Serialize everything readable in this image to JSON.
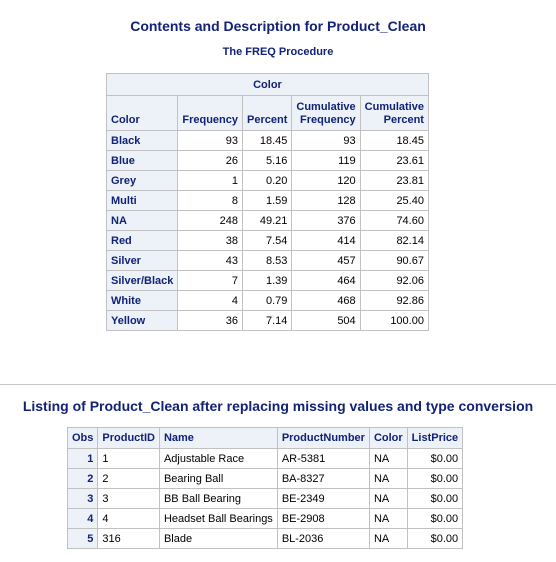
{
  "title": "Contents and Description for Product_Clean",
  "subtitle": "The FREQ Procedure",
  "freq_table": {
    "variable_header": "Color",
    "columns": [
      "Color",
      "Frequency",
      "Percent",
      "Cumulative Frequency",
      "Cumulative Percent"
    ],
    "rows": [
      {
        "color": "Black",
        "frequency": "93",
        "percent": "18.45",
        "cum_freq": "93",
        "cum_pct": "18.45"
      },
      {
        "color": "Blue",
        "frequency": "26",
        "percent": "5.16",
        "cum_freq": "119",
        "cum_pct": "23.61"
      },
      {
        "color": "Grey",
        "frequency": "1",
        "percent": "0.20",
        "cum_freq": "120",
        "cum_pct": "23.81"
      },
      {
        "color": "Multi",
        "frequency": "8",
        "percent": "1.59",
        "cum_freq": "128",
        "cum_pct": "25.40"
      },
      {
        "color": "NA",
        "frequency": "248",
        "percent": "49.21",
        "cum_freq": "376",
        "cum_pct": "74.60"
      },
      {
        "color": "Red",
        "frequency": "38",
        "percent": "7.54",
        "cum_freq": "414",
        "cum_pct": "82.14"
      },
      {
        "color": "Silver",
        "frequency": "43",
        "percent": "8.53",
        "cum_freq": "457",
        "cum_pct": "90.67"
      },
      {
        "color": "Silver/Black",
        "frequency": "7",
        "percent": "1.39",
        "cum_freq": "464",
        "cum_pct": "92.06"
      },
      {
        "color": "White",
        "frequency": "4",
        "percent": "0.79",
        "cum_freq": "468",
        "cum_pct": "92.86"
      },
      {
        "color": "Yellow",
        "frequency": "36",
        "percent": "7.14",
        "cum_freq": "504",
        "cum_pct": "100.00"
      }
    ]
  },
  "listing_title": "Listing of Product_Clean after replacing missing values and type conversion",
  "listing_table": {
    "columns": [
      "Obs",
      "ProductID",
      "Name",
      "ProductNumber",
      "Color",
      "ListPrice"
    ],
    "rows": [
      {
        "obs": "1",
        "productid": "1",
        "name": "Adjustable Race",
        "productnumber": "AR-5381",
        "color": "NA",
        "listprice": "$0.00"
      },
      {
        "obs": "2",
        "productid": "2",
        "name": "Bearing Ball",
        "productnumber": "BA-8327",
        "color": "NA",
        "listprice": "$0.00"
      },
      {
        "obs": "3",
        "productid": "3",
        "name": "BB Ball Bearing",
        "productnumber": "BE-2349",
        "color": "NA",
        "listprice": "$0.00"
      },
      {
        "obs": "4",
        "productid": "4",
        "name": "Headset Ball Bearings",
        "productnumber": "BE-2908",
        "color": "NA",
        "listprice": "$0.00"
      },
      {
        "obs": "5",
        "productid": "316",
        "name": "Blade",
        "productnumber": "BL-2036",
        "color": "NA",
        "listprice": "$0.00"
      }
    ]
  }
}
